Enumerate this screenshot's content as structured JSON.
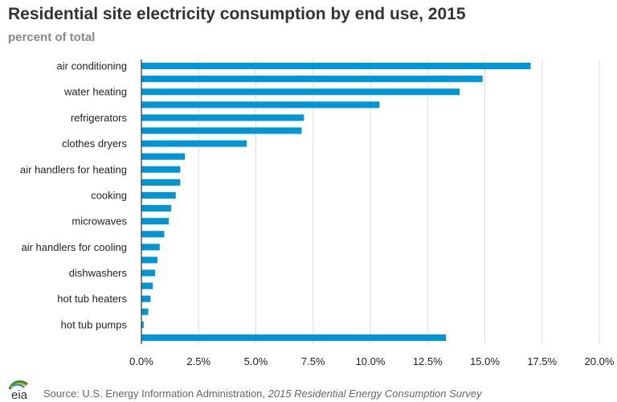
{
  "chart_data": {
    "type": "bar",
    "orientation": "horizontal",
    "title": "Residential site electricity consumption by end use, 2015",
    "subtitle": "percent of total",
    "labeled_categories": [
      "air conditioning",
      "water heating",
      "refrigerators",
      "clothes dryers",
      "air handlers for heating",
      "cooking",
      "microwaves",
      "air handlers for cooling",
      "dishwashers",
      "hot tub heaters",
      "hot tub pumps"
    ],
    "labeled_indices": [
      0,
      2,
      4,
      6,
      8,
      10,
      12,
      14,
      16,
      18,
      20
    ],
    "values": [
      17.0,
      14.9,
      13.9,
      10.4,
      7.1,
      7.0,
      4.6,
      1.9,
      1.7,
      1.7,
      1.5,
      1.3,
      1.2,
      1.0,
      0.8,
      0.7,
      0.6,
      0.5,
      0.4,
      0.3,
      0.1,
      13.3
    ],
    "xlim": [
      0,
      20
    ],
    "xticks": [
      0,
      2.5,
      5,
      7.5,
      10,
      12.5,
      15,
      17.5,
      20
    ],
    "xtick_labels": [
      "0.0%",
      "2.5%",
      "5.0%",
      "7.5%",
      "10.0%",
      "12.5%",
      "15.0%",
      "17.5%",
      "20.0%"
    ],
    "grid": "vertical",
    "bar_color": "#0096d6"
  },
  "footer": {
    "logo_text": "eia",
    "source_prefix": "Source: U.S. Energy Information Administration, ",
    "source_survey": "2015 Residential Energy Consumption Survey"
  }
}
